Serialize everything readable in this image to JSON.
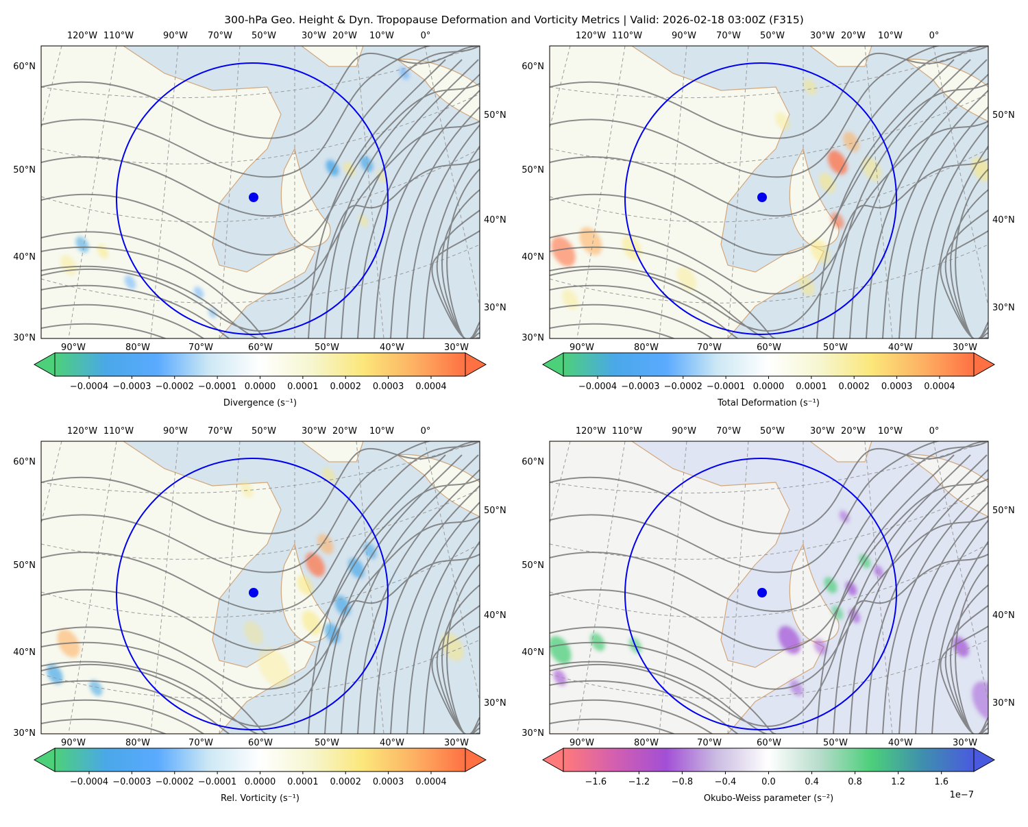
{
  "figure": {
    "title": "300-hPa Geo. Height & Dyn. Tropopause Deformation and Vorticity Metrics |  Valid: 2026-02-18 03:00Z (F315)"
  },
  "chart_data": [
    {
      "type": "heatmap",
      "name": "divergence",
      "position": "top-left",
      "field": "Divergence",
      "colorbar_label": "Divergence (s⁻¹)",
      "colorbar_ticks": [
        "−0.0004",
        "−0.0003",
        "−0.0002",
        "−0.0001",
        "0.0000",
        "0.0001",
        "0.0002",
        "0.0003",
        "0.0004"
      ],
      "colorbar_range": [
        -0.00048,
        0.00048
      ],
      "colorbar_extend": "both",
      "colormap": [
        "#4dd07a",
        "#4aa8e8",
        "#5aaaff",
        "#cde8f4",
        "#ffffff",
        "#f6f6d0",
        "#fbe77a",
        "#fdb163",
        "#ff7043"
      ],
      "top_lon_labels": [
        "120°W",
        "110°W",
        "90°W",
        "70°W",
        "50°W",
        "30°W",
        "20°W",
        "10°W",
        "0°"
      ],
      "bottom_lon_labels": [
        "90°W",
        "80°W",
        "70°W",
        "60°W",
        "50°W",
        "40°W",
        "30°W"
      ],
      "left_lat_labels": [
        "60°N",
        "50°N",
        "40°N",
        "30°N"
      ],
      "right_lat_labels": [
        "50°N",
        "40°N",
        "30°N"
      ],
      "features": "Weak scattered divergence; blue/yellow cells near 45-35W in trough and along southwest jet",
      "circle_center": "approx 52°N 60°W",
      "scale_note": ""
    },
    {
      "type": "heatmap",
      "name": "total-deformation",
      "position": "top-right",
      "field": "Total Deformation",
      "colorbar_label": "Total Deformation (s⁻¹)",
      "colorbar_ticks": [
        "−0.0004",
        "−0.0003",
        "−0.0002",
        "−0.0001",
        "0.0000",
        "0.0001",
        "0.0002",
        "0.0003",
        "0.0004"
      ],
      "colorbar_range": [
        -0.00048,
        0.00048
      ],
      "colorbar_extend": "both",
      "colormap": [
        "#4dd07a",
        "#4aa8e8",
        "#5aaaff",
        "#cde8f4",
        "#ffffff",
        "#f6f6d0",
        "#fbe77a",
        "#fdb163",
        "#ff7043"
      ],
      "top_lon_labels": [
        "120°W",
        "110°W",
        "90°W",
        "70°W",
        "50°W",
        "30°W",
        "20°W",
        "10°W",
        "0°"
      ],
      "bottom_lon_labels": [
        "90°W",
        "80°W",
        "70°W",
        "60°W",
        "50°W",
        "40°W",
        "30°W"
      ],
      "left_lat_labels": [
        "60°N",
        "50°N",
        "40°N",
        "30°N"
      ],
      "right_lat_labels": [
        "50°N",
        "40°N",
        "30°N"
      ],
      "features": "Strong deformation band (orange/red) along jet on west flank of trough; max near 48°N 45°W; secondary band along southern US jet",
      "scale_note": ""
    },
    {
      "type": "heatmap",
      "name": "relative-vorticity",
      "position": "bottom-left",
      "field": "Rel. Vorticity",
      "colorbar_label": "Rel. Vorticity (s⁻¹)",
      "colorbar_ticks": [
        "−0.0004",
        "−0.0003",
        "−0.0002",
        "−0.0001",
        "0.0000",
        "0.0001",
        "0.0002",
        "0.0003",
        "0.0004"
      ],
      "colorbar_range": [
        -0.00048,
        0.00048
      ],
      "colorbar_extend": "both",
      "colormap": [
        "#4dd07a",
        "#4aa8e8",
        "#5aaaff",
        "#cde8f4",
        "#ffffff",
        "#f6f6d0",
        "#fbe77a",
        "#fdb163",
        "#ff7043"
      ],
      "top_lon_labels": [
        "120°W",
        "110°W",
        "90°W",
        "70°W",
        "50°W",
        "30°W",
        "20°W",
        "10°W",
        "0°"
      ],
      "bottom_lon_labels": [
        "90°W",
        "80°W",
        "70°W",
        "60°W",
        "50°W",
        "40°W",
        "30°W"
      ],
      "left_lat_labels": [
        "60°N",
        "50°N",
        "40°N",
        "30°N"
      ],
      "right_lat_labels": [
        "50°N",
        "40°N",
        "30°N"
      ],
      "features": "Positive vorticity (yellow/orange) along cyclonic shear side of jet; negative (blue) streaks on anticyclonic side east of trough",
      "scale_note": ""
    },
    {
      "type": "heatmap",
      "name": "okubo-weiss",
      "position": "bottom-right",
      "field": "Okubo-Weiss parameter",
      "colorbar_label": "Okubo-Weiss parameter (s⁻²)",
      "colorbar_ticks": [
        "−1.6",
        "−1.2",
        "−0.8",
        "−0.4",
        "0.0",
        "0.4",
        "0.8",
        "1.2",
        "1.6"
      ],
      "colorbar_range": [
        -1.9e-07,
        1.9e-07
      ],
      "colorbar_extend": "both",
      "colormap": [
        "#ff7a7a",
        "#d35fb0",
        "#a24fd6",
        "#cbbde2",
        "#ffffff",
        "#b7dccb",
        "#4ccf7a",
        "#3f8fae",
        "#4a5adf"
      ],
      "top_lon_labels": [
        "120°W",
        "110°W",
        "90°W",
        "70°W",
        "50°W",
        "30°W",
        "20°W",
        "10°W",
        "0°"
      ],
      "bottom_lon_labels": [
        "90°W",
        "80°W",
        "70°W",
        "60°W",
        "50°W",
        "40°W",
        "30°W"
      ],
      "left_lat_labels": [
        "60°N",
        "50°N",
        "40°N",
        "30°N"
      ],
      "right_lat_labels": [
        "50°N",
        "40°N",
        "30°N"
      ],
      "features": "Strain-dominated (green) cells along jet; rotation-dominated (purple) cells near Nova Scotia and in trough",
      "scale_note": "1e−7"
    }
  ],
  "map_overlays": {
    "contours": "300-hPa geopotential height (gray lines)",
    "circle_color": "#0000ee",
    "marker_color": "#0000ee",
    "coastline_color": "#d2a679",
    "ocean_color": "#d6e4ee",
    "land_color": "#f7f9ef"
  }
}
